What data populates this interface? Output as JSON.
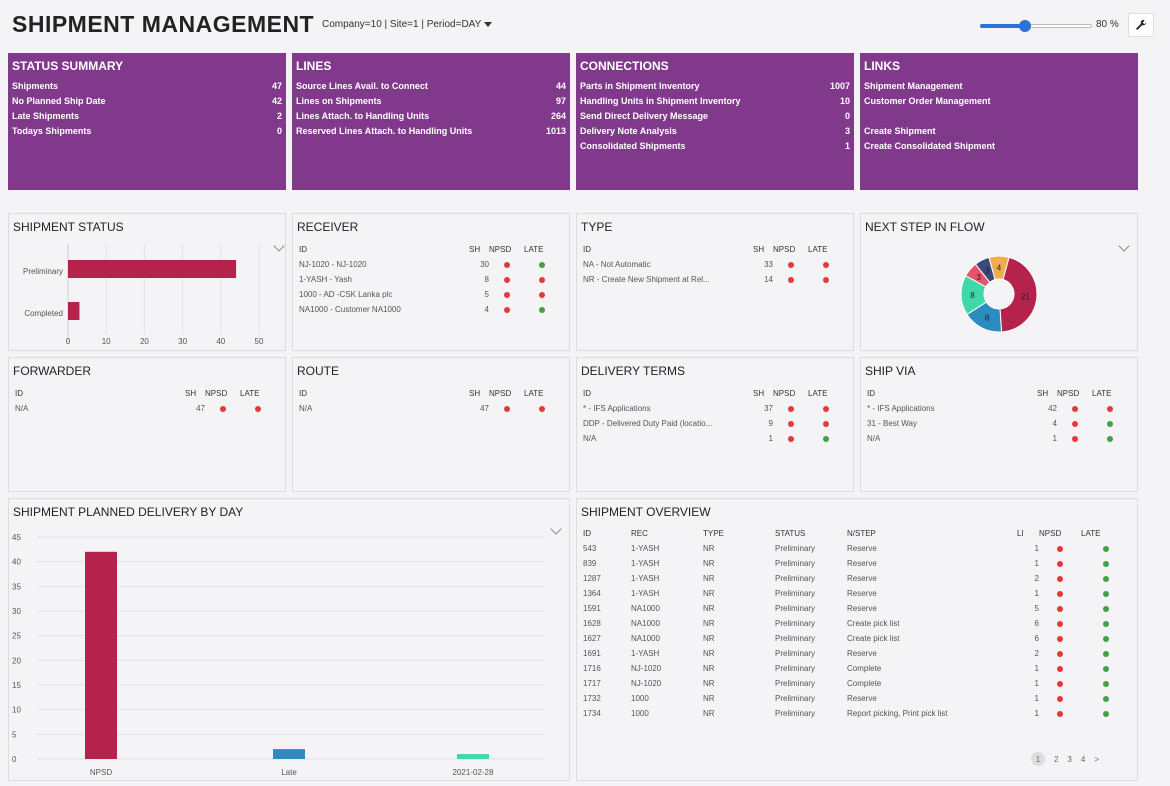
{
  "header": {
    "title": "SHIPMENT MANAGEMENT",
    "context": "Company=10 | Site=1 | Period=DAY",
    "zoom": 80,
    "zoom_label": "80 %"
  },
  "tiles": [
    {
      "title": "STATUS SUMMARY",
      "rows": [
        {
          "label": "Shipments",
          "value": "47"
        },
        {
          "label": "No Planned Ship Date",
          "value": "42"
        },
        {
          "label": "Late Shipments",
          "value": "2"
        },
        {
          "label": "Todays Shipments",
          "value": "0"
        }
      ]
    },
    {
      "title": "LINES",
      "rows": [
        {
          "label": "Source Lines Avail. to Connect",
          "value": "44"
        },
        {
          "label": "Lines on Shipments",
          "value": "97"
        },
        {
          "label": "Lines Attach. to Handling Units",
          "value": "264"
        },
        {
          "label": "Reserved Lines Attach. to Handling Units",
          "value": "1013"
        }
      ]
    },
    {
      "title": "CONNECTIONS",
      "rows": [
        {
          "label": "Parts in Shipment Inventory",
          "value": "1007"
        },
        {
          "label": "Handling Units in Shipment Inventory",
          "value": "10"
        },
        {
          "label": "Send Direct Delivery Message",
          "value": "0"
        },
        {
          "label": "Delivery Note Analysis",
          "value": "3"
        },
        {
          "label": "Consolidated Shipments",
          "value": "1"
        }
      ]
    },
    {
      "title": "LINKS",
      "links": [
        "Shipment Management",
        "Customer Order Management",
        "",
        "Create Shipment",
        "Create Consolidated Shipment"
      ]
    }
  ],
  "shipment_status": {
    "title": "SHIPMENT STATUS",
    "chart_data": {
      "type": "bar",
      "orientation": "horizontal",
      "categories": [
        "Preliminary",
        "Completed"
      ],
      "values": [
        44,
        3
      ],
      "xlim": [
        0,
        50
      ],
      "ticks": [
        "0",
        "10",
        "20",
        "30",
        "40",
        "50"
      ],
      "color": "#b5224c"
    }
  },
  "receiver": {
    "title": "RECEIVER",
    "cols": [
      "ID",
      "SH",
      "NPSD",
      "LATE"
    ],
    "rows": [
      {
        "id": "NJ-1020 - NJ-1020",
        "sh": "30",
        "npsd": "red",
        "late": "green"
      },
      {
        "id": "1-YASH - Yash",
        "sh": "8",
        "npsd": "red",
        "late": "red"
      },
      {
        "id": "1000 - AD -CSK Lanka plc",
        "sh": "5",
        "npsd": "red",
        "late": "red"
      },
      {
        "id": "NA1000 - Customer NA1000",
        "sh": "4",
        "npsd": "red",
        "late": "green"
      }
    ]
  },
  "type": {
    "title": "TYPE",
    "cols": [
      "ID",
      "SH",
      "NPSD",
      "LATE"
    ],
    "rows": [
      {
        "id": "NA - Not Automatic",
        "sh": "33",
        "npsd": "red",
        "late": "red"
      },
      {
        "id": "NR - Create New Shipment at Rel...",
        "sh": "14",
        "npsd": "red",
        "late": "red"
      }
    ]
  },
  "next_step": {
    "title": "NEXT STEP IN FLOW",
    "chart_data": {
      "type": "pie",
      "style": "donut",
      "values": [
        21,
        8,
        8,
        3,
        3,
        4
      ],
      "labels": [
        "21",
        "8",
        "8",
        "3",
        "3",
        "4"
      ],
      "colors": [
        "#b5224c",
        "#2e8bc0",
        "#3dd9a8",
        "#e8536b",
        "#3a4a7a",
        "#f0ad4e"
      ]
    }
  },
  "forwarder": {
    "title": "FORWARDER",
    "cols": [
      "ID",
      "SH",
      "NPSD",
      "LATE"
    ],
    "rows": [
      {
        "id": "N/A",
        "sh": "47",
        "npsd": "red",
        "late": "red"
      }
    ]
  },
  "route": {
    "title": "ROUTE",
    "cols": [
      "ID",
      "SH",
      "NPSD",
      "LATE"
    ],
    "rows": [
      {
        "id": "N/A",
        "sh": "47",
        "npsd": "red",
        "late": "red"
      }
    ]
  },
  "delivery_terms": {
    "title": "DELIVERY TERMS",
    "cols": [
      "ID",
      "SH",
      "NPSD",
      "LATE"
    ],
    "rows": [
      {
        "id": "* - IFS Applications",
        "sh": "37",
        "npsd": "red",
        "late": "red"
      },
      {
        "id": "DDP - Delivered Duty Paid (locatio...",
        "sh": "9",
        "npsd": "red",
        "late": "red"
      },
      {
        "id": "N/A",
        "sh": "1",
        "npsd": "red",
        "late": "green"
      }
    ]
  },
  "ship_via": {
    "title": "SHIP VIA",
    "cols": [
      "ID",
      "SH",
      "NPSD",
      "LATE"
    ],
    "rows": [
      {
        "id": "* - IFS Applications",
        "sh": "42",
        "npsd": "red",
        "late": "red"
      },
      {
        "id": "31 - Best Way",
        "sh": "4",
        "npsd": "red",
        "late": "green"
      },
      {
        "id": "N/A",
        "sh": "1",
        "npsd": "red",
        "late": "green"
      }
    ]
  },
  "planned_delivery": {
    "title": "SHIPMENT PLANNED DELIVERY BY DAY",
    "chart_data": {
      "type": "bar",
      "categories": [
        "NPSD",
        "Late",
        "2021-02-28"
      ],
      "values": [
        42,
        2,
        1
      ],
      "colors": [
        "#b5224c",
        "#2e8bc0",
        "#3dd9a8"
      ],
      "ylim": [
        0,
        45
      ],
      "yticks": [
        "0",
        "5",
        "10",
        "15",
        "20",
        "25",
        "30",
        "35",
        "40",
        "45"
      ]
    }
  },
  "overview": {
    "title": "SHIPMENT OVERVIEW",
    "cols": [
      "ID",
      "REC",
      "TYPE",
      "STATUS",
      "N/STEP",
      "LI",
      "NPSD",
      "LATE"
    ],
    "rows": [
      {
        "id": "543",
        "rec": "1-YASH",
        "type": "NR",
        "status": "Preliminary",
        "step": "Reserve",
        "li": "1",
        "npsd": "red",
        "late": "green"
      },
      {
        "id": "839",
        "rec": "1-YASH",
        "type": "NR",
        "status": "Preliminary",
        "step": "Reserve",
        "li": "1",
        "npsd": "red",
        "late": "green"
      },
      {
        "id": "1287",
        "rec": "1-YASH",
        "type": "NR",
        "status": "Preliminary",
        "step": "Reserve",
        "li": "2",
        "npsd": "red",
        "late": "green"
      },
      {
        "id": "1364",
        "rec": "1-YASH",
        "type": "NR",
        "status": "Preliminary",
        "step": "Reserve",
        "li": "1",
        "npsd": "red",
        "late": "green"
      },
      {
        "id": "1591",
        "rec": "NA1000",
        "type": "NR",
        "status": "Preliminary",
        "step": "Reserve",
        "li": "5",
        "npsd": "red",
        "late": "green"
      },
      {
        "id": "1628",
        "rec": "NA1000",
        "type": "NR",
        "status": "Preliminary",
        "step": "Create pick list",
        "li": "6",
        "npsd": "red",
        "late": "green"
      },
      {
        "id": "1627",
        "rec": "NA1000",
        "type": "NR",
        "status": "Preliminary",
        "step": "Create pick list",
        "li": "6",
        "npsd": "red",
        "late": "green"
      },
      {
        "id": "1691",
        "rec": "1-YASH",
        "type": "NR",
        "status": "Preliminary",
        "step": "Reserve",
        "li": "2",
        "npsd": "red",
        "late": "green"
      },
      {
        "id": "1716",
        "rec": "NJ-1020",
        "type": "NR",
        "status": "Preliminary",
        "step": "Complete",
        "li": "1",
        "npsd": "red",
        "late": "green"
      },
      {
        "id": "1717",
        "rec": "NJ-1020",
        "type": "NR",
        "status": "Preliminary",
        "step": "Complete",
        "li": "1",
        "npsd": "red",
        "late": "green"
      },
      {
        "id": "1732",
        "rec": "1000",
        "type": "NR",
        "status": "Preliminary",
        "step": "Reserve",
        "li": "1",
        "npsd": "red",
        "late": "green"
      },
      {
        "id": "1734",
        "rec": "1000",
        "type": "NR",
        "status": "Preliminary",
        "step": "Report picking, Print pick list",
        "li": "1",
        "npsd": "red",
        "late": "green"
      }
    ],
    "pager": {
      "pages": [
        "1",
        "2",
        "3",
        "4"
      ],
      "next": ">"
    }
  }
}
